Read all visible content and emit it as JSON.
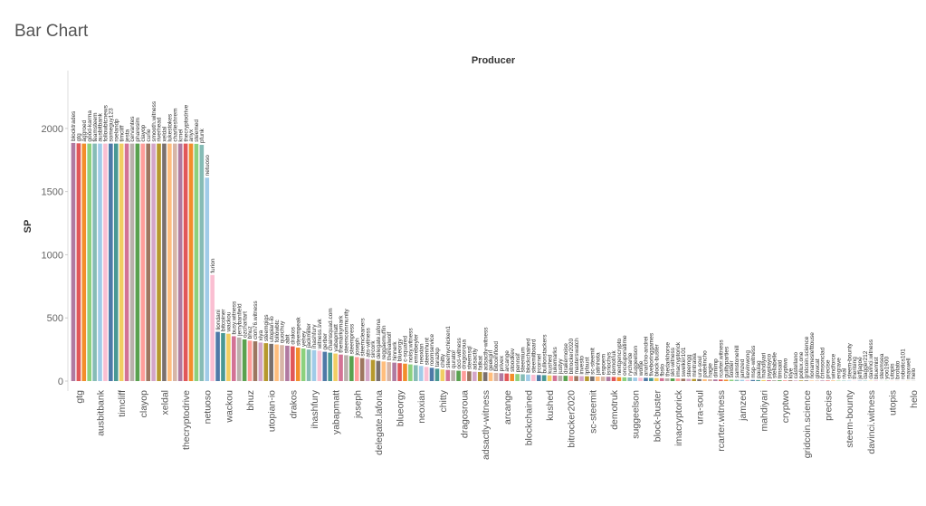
{
  "chart_data": {
    "type": "bar",
    "title": "Bar Chart",
    "header": "Producer",
    "y_label": "SP",
    "categories": [
      "blocktrades",
      "gtg",
      "aggroed",
      "good-karma",
      "teamsteem",
      "ausbitbank",
      "followbtcnews",
      "someguy123",
      "roelandp",
      "timcliff",
      "jesta",
      "cervantes",
      "pharesim",
      "clayop",
      "curie",
      "smooth.witness",
      "riverhead",
      "xeldal",
      "lukestokes",
      "charlieshrem",
      "krnel",
      "thecryptodrive",
      "anyx",
      "steemed",
      "pfunk",
      "netuoso",
      "furion",
      "liondani",
      "bitcoiner",
      "wackou",
      "busy.witness",
      "jerrybanfield",
      "ozchartart",
      "bhuz",
      "cloh76.witness",
      "xiya",
      "steemgigs",
      "utopian-io",
      "followbtc",
      "quochuy",
      "abit",
      "drakos",
      "steempeak",
      "yehey",
      "jackmiller",
      "ihashfury",
      "witness.svk",
      "gerber",
      "chainsquad.com",
      "yabapmatt",
      "themarkymark",
      "steemcommunity",
      "steempress",
      "joseph",
      "steemcleaners",
      "ats-witness",
      "sircork",
      "delegate.lafona",
      "reggaemuffin",
      "therealwolf",
      "hinnerk",
      "blueorgy",
      "c-squared",
      "noisy.witness",
      "emrebeyler",
      "neoxian",
      "steemhunt",
      "roomservice",
      "tarazkp",
      "chitty",
      "steemychicken1",
      "qurator",
      "ocd-witness",
      "dragosroua",
      "steemsql",
      "adsactly",
      "fatkat",
      "adsactly-witness",
      "geekgirl",
      "bitcoinflood",
      "privex",
      "arcange",
      "stoodkev",
      "pennsif",
      "steemium",
      "blockchained",
      "steemitboard",
      "jrcornel",
      "bullionstackers",
      "kushed",
      "lukemarks",
      "justyy",
      "drakernoise",
      "bitrocker2020",
      "masterswatch",
      "investo",
      "lpfaust",
      "sc-steemit",
      "jatinhota",
      "espoem",
      "isnochys",
      "demotruk",
      "nextgencrypto",
      "onceuponatime",
      "rycharde",
      "suggeelson",
      "wolfje",
      "anarcho-andrei",
      "fiveboringgames",
      "block-buster",
      "fbslo",
      "thedarkhorse",
      "skt-witness",
      "imacryptorick",
      "swelker101",
      "steemgg",
      "mintrawa",
      "ura-soul",
      "patelincho",
      "hagie",
      "dimimp",
      "rcarter.witness",
      "guiltyparties",
      "soldier",
      "samstonehill",
      "jamzed",
      "kevinwong",
      "msp-witness",
      "paulag",
      "mahdiyari",
      "jayplayco",
      "stellabelle",
      "timsaid",
      "cryptwo",
      "klye",
      "castellano",
      "pollux.one",
      "gridcoin.science",
      "nonameslefttouse",
      "glowcat",
      "crimsonclad",
      "precise",
      "windforce",
      "engrave",
      "rival",
      "steem-bounty",
      "therising",
      "jeffjagoe",
      "dagger212",
      "davinci.witness",
      "bluemist",
      "steemsea",
      "yoo1900",
      "utopis",
      "brotato",
      "robotics101",
      "maxwell",
      "helo"
    ],
    "values": [
      1885,
      1882,
      1880,
      1880,
      1880,
      1880,
      1880,
      1880,
      1880,
      1880,
      1880,
      1880,
      1880,
      1880,
      1880,
      1880,
      1880,
      1880,
      1880,
      1880,
      1880,
      1880,
      1880,
      1878,
      1870,
      1610,
      840,
      390,
      380,
      375,
      355,
      345,
      330,
      320,
      315,
      305,
      300,
      295,
      290,
      285,
      280,
      275,
      265,
      258,
      250,
      245,
      240,
      232,
      225,
      218,
      210,
      205,
      198,
      190,
      182,
      175,
      168,
      160,
      155,
      150,
      146,
      142,
      138,
      132,
      126,
      120,
      112,
      105,
      98,
      92,
      88,
      85,
      82,
      80,
      77,
      74,
      72,
      70,
      67,
      65,
      62,
      60,
      58,
      56,
      54,
      52,
      50,
      48,
      47,
      45,
      44,
      43,
      42,
      41,
      40,
      39,
      38,
      37,
      36,
      35,
      34,
      33,
      31,
      30,
      29,
      28,
      27,
      26,
      25,
      24,
      23,
      22,
      21,
      20,
      19,
      18,
      17,
      16,
      15,
      14,
      13,
      12,
      11,
      11,
      10,
      10,
      9,
      9,
      8,
      8,
      7,
      7,
      6,
      6,
      6,
      5,
      5,
      5,
      4,
      4,
      4,
      4,
      3,
      3,
      3,
      3,
      2,
      2,
      2,
      2,
      2,
      1,
      1,
      1,
      1,
      1,
      1,
      1
    ],
    "colors": [
      "#b07aa1",
      "#e15759",
      "#f28e2b",
      "#8cd17d",
      "#86bcb6",
      "#a0cbe8",
      "#fabfd2",
      "#4e79a7",
      "#499894",
      "#f1ce63",
      "#d37295",
      "#bab0ac",
      "#59a14f",
      "#ff9d9a",
      "#9d7660",
      "#d4a6c8",
      "#b6992d",
      "#79706e",
      "#ffbe7d",
      "#d7b5a6"
    ],
    "ylim": [
      0,
      2300
    ],
    "yticks": [
      0,
      500,
      1000,
      1500,
      2000
    ],
    "grid": false
  }
}
